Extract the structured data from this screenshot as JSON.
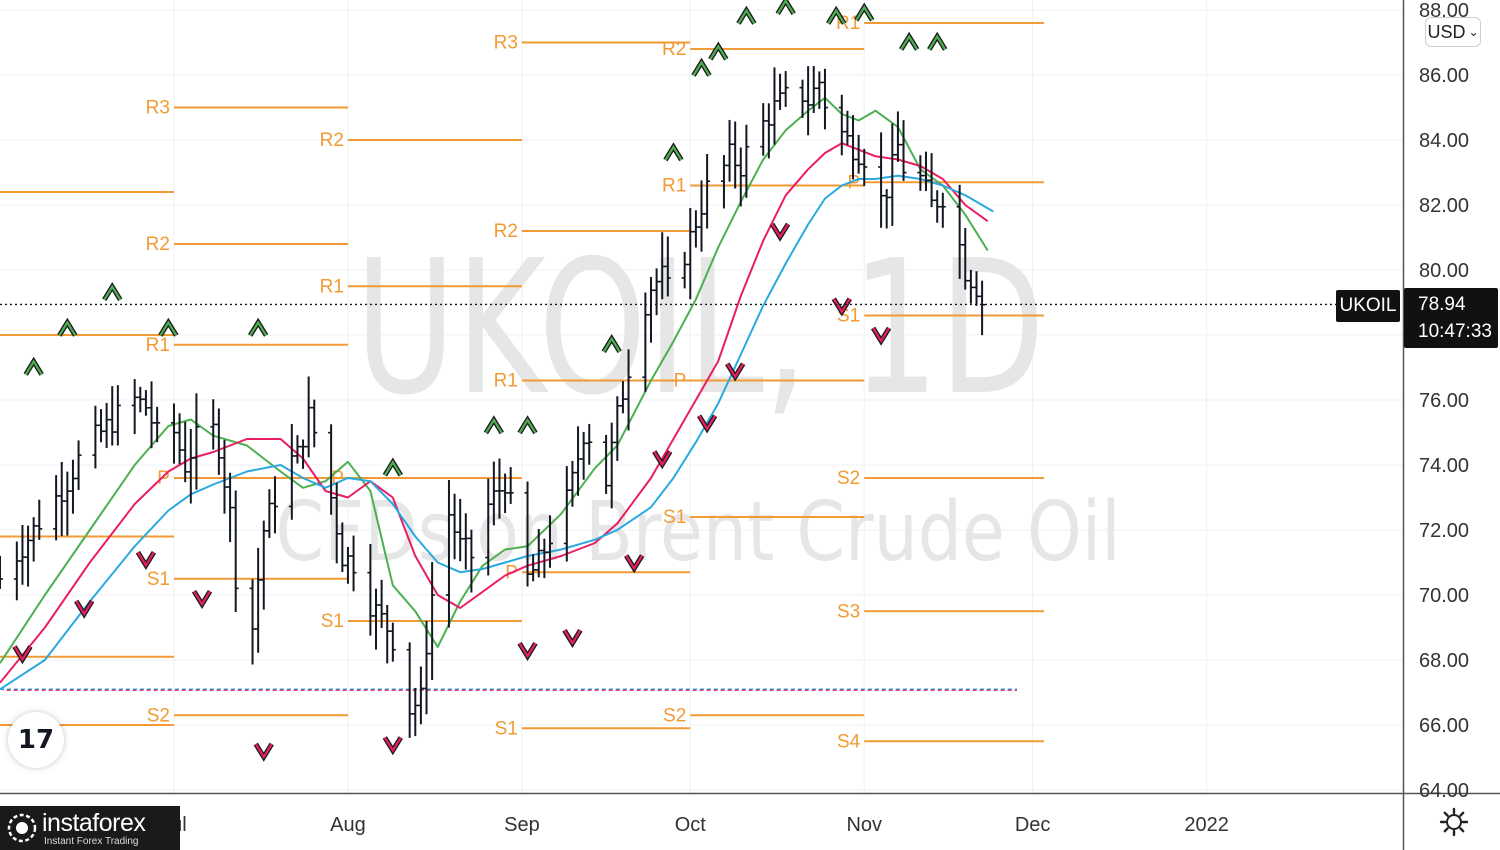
{
  "chart_data": {
    "type": "ohlc",
    "symbol": "UKOIL",
    "currency": "USD",
    "watermark_title": "UKOIL, 1D",
    "watermark_subtitle": "CFDs on Brent Crude Oil",
    "ylim": [
      64,
      88
    ],
    "y_ticks": [
      "64.00",
      "66.00",
      "68.00",
      "70.00",
      "72.00",
      "74.00",
      "76.00",
      "78.00",
      "80.00",
      "82.00",
      "84.00",
      "86.00",
      "88.00"
    ],
    "y_tick_values": [
      64,
      66,
      68,
      70,
      72,
      74,
      76,
      78,
      80,
      82,
      84,
      86,
      88
    ],
    "x_ticks": [
      {
        "label": "Jul",
        "day": 7
      },
      {
        "label": "Aug",
        "day": 38
      },
      {
        "label": "Sep",
        "day": 69
      },
      {
        "label": "Oct",
        "day": 99
      },
      {
        "label": "Nov",
        "day": 130
      },
      {
        "label": "Dec",
        "day": 160
      },
      {
        "label": "2022",
        "day": 191
      }
    ],
    "x_range_days": [
      -24,
      226
    ],
    "last_price": "78.94",
    "last_price_value": 78.94,
    "countdown": "10:47:33",
    "series_colors": {
      "ma_fast": "#4caf50",
      "ma_mid": "#e91e63",
      "ma_slow": "#2aa9e0",
      "pivots": "#f29a33",
      "bars": "#131722"
    },
    "horizontal_refs": [
      {
        "value": 67.1,
        "style": "dashed",
        "colors": [
          "#2aa9e0",
          "#e91e63"
        ]
      }
    ],
    "pivot_levels": [
      {
        "label": "",
        "value": 78.0,
        "from_day": -24,
        "to_day": 7
      },
      {
        "label": "",
        "value": 82.4,
        "from_day": -24,
        "to_day": 7
      },
      {
        "label": "",
        "value": 71.8,
        "from_day": -24,
        "to_day": 7
      },
      {
        "label": "",
        "value": 68.1,
        "from_day": -24,
        "to_day": 7
      },
      {
        "label": "",
        "value": 66.0,
        "from_day": -24,
        "to_day": 7
      },
      {
        "label": "R3",
        "value": 85.0,
        "from_day": 7,
        "to_day": 38
      },
      {
        "label": "R2",
        "value": 80.8,
        "from_day": 7,
        "to_day": 38
      },
      {
        "label": "R1",
        "value": 77.7,
        "from_day": 7,
        "to_day": 38
      },
      {
        "label": "P",
        "value": 73.6,
        "from_day": 7,
        "to_day": 38
      },
      {
        "label": "S1",
        "value": 70.5,
        "from_day": 7,
        "to_day": 38
      },
      {
        "label": "S2",
        "value": 66.3,
        "from_day": 7,
        "to_day": 38
      },
      {
        "label": "R2",
        "value": 84.0,
        "from_day": 38,
        "to_day": 69
      },
      {
        "label": "R1",
        "value": 79.5,
        "from_day": 38,
        "to_day": 69
      },
      {
        "label": "P",
        "value": 73.6,
        "from_day": 38,
        "to_day": 69
      },
      {
        "label": "S1",
        "value": 69.2,
        "from_day": 38,
        "to_day": 69
      },
      {
        "label": "R3",
        "value": 87.0,
        "from_day": 69,
        "to_day": 99
      },
      {
        "label": "R2",
        "value": 81.2,
        "from_day": 69,
        "to_day": 99
      },
      {
        "label": "R1",
        "value": 76.6,
        "from_day": 69,
        "to_day": 99
      },
      {
        "label": "P",
        "value": 70.7,
        "from_day": 69,
        "to_day": 99
      },
      {
        "label": "S1",
        "value": 65.9,
        "from_day": 69,
        "to_day": 99
      },
      {
        "label": "R2",
        "value": 86.8,
        "from_day": 99,
        "to_day": 130
      },
      {
        "label": "R1",
        "value": 82.6,
        "from_day": 99,
        "to_day": 130
      },
      {
        "label": "P",
        "value": 76.6,
        "from_day": 99,
        "to_day": 130
      },
      {
        "label": "S1",
        "value": 72.4,
        "from_day": 99,
        "to_day": 130
      },
      {
        "label": "S2",
        "value": 66.3,
        "from_day": 99,
        "to_day": 130
      },
      {
        "label": "R1",
        "value": 87.6,
        "from_day": 130,
        "to_day": 162
      },
      {
        "label": "P",
        "value": 82.7,
        "from_day": 130,
        "to_day": 162
      },
      {
        "label": "S1",
        "value": 78.6,
        "from_day": 130,
        "to_day": 162
      },
      {
        "label": "S2",
        "value": 73.6,
        "from_day": 130,
        "to_day": 162
      },
      {
        "label": "S3",
        "value": 69.5,
        "from_day": 130,
        "to_day": 162
      },
      {
        "label": "S4",
        "value": 65.5,
        "from_day": 130,
        "to_day": 162
      }
    ],
    "ohlc_anchors": [
      [
        -24,
        70.5
      ],
      [
        -20,
        71.5
      ],
      [
        -16,
        72.5
      ],
      [
        -12,
        73.5
      ],
      [
        -9,
        74.5
      ],
      [
        -6,
        75.0
      ],
      [
        -2,
        75.7
      ],
      [
        0,
        76.0
      ],
      [
        2,
        75.8
      ],
      [
        5,
        74.5
      ],
      [
        7,
        75.0
      ],
      [
        9,
        74.0
      ],
      [
        11,
        74.8
      ],
      [
        13,
        75.5
      ],
      [
        15,
        74.6
      ],
      [
        17,
        72.5
      ],
      [
        19,
        68.7
      ],
      [
        21,
        69.0
      ],
      [
        23,
        72.0
      ],
      [
        25,
        73.0
      ],
      [
        27,
        74.0
      ],
      [
        29,
        74.3
      ],
      [
        31,
        75.5
      ],
      [
        33,
        74.5
      ],
      [
        35,
        73.0
      ],
      [
        37,
        71.2
      ],
      [
        39,
        71.0
      ],
      [
        41,
        70.0
      ],
      [
        43,
        69.5
      ],
      [
        45,
        69.0
      ],
      [
        47,
        68.3
      ],
      [
        49,
        66.5
      ],
      [
        51,
        66.8
      ],
      [
        52,
        68.5
      ],
      [
        54,
        71.5
      ],
      [
        56,
        72.5
      ],
      [
        58,
        71.5
      ],
      [
        60,
        71.2
      ],
      [
        62,
        72.5
      ],
      [
        64,
        73.0
      ],
      [
        66,
        73.5
      ],
      [
        68,
        72.0
      ],
      [
        70,
        70.5
      ],
      [
        72,
        71.0
      ],
      [
        74,
        71.8
      ],
      [
        76,
        72.3
      ],
      [
        78,
        73.5
      ],
      [
        80,
        75.0
      ],
      [
        82,
        74.8
      ],
      [
        84,
        73.5
      ],
      [
        86,
        75.5
      ],
      [
        88,
        77.0
      ],
      [
        90,
        78.5
      ],
      [
        92,
        79.5
      ],
      [
        94,
        79.8
      ],
      [
        96,
        79.0
      ],
      [
        98,
        80.5
      ],
      [
        100,
        81.5
      ],
      [
        102,
        82.5
      ],
      [
        104,
        82.8
      ],
      [
        106,
        83.5
      ],
      [
        108,
        83.2
      ],
      [
        110,
        84.0
      ],
      [
        112,
        84.5
      ],
      [
        114,
        85.0
      ],
      [
        116,
        85.3
      ],
      [
        118,
        85.6
      ],
      [
        120,
        85.2
      ],
      [
        122,
        85.8
      ],
      [
        124,
        84.5
      ],
      [
        126,
        84.2
      ],
      [
        128,
        83.8
      ],
      [
        130,
        83.5
      ],
      [
        132,
        81.8
      ],
      [
        134,
        82.5
      ],
      [
        136,
        83.8
      ],
      [
        138,
        82.5
      ],
      [
        140,
        82.8
      ],
      [
        142,
        82.0
      ],
      [
        144,
        82.3
      ],
      [
        146,
        81.5
      ],
      [
        148,
        80.0
      ],
      [
        150,
        79.5
      ],
      [
        152,
        78.5
      ],
      [
        153,
        78.94
      ]
    ],
    "moving_averages": [
      {
        "key": "ma_fast",
        "points": [
          [
            -24,
            67.9
          ],
          [
            -16,
            70.0
          ],
          [
            -8,
            72.0
          ],
          [
            0,
            74.0
          ],
          [
            6,
            75.2
          ],
          [
            10,
            75.4
          ],
          [
            14,
            74.9
          ],
          [
            20,
            74.6
          ],
          [
            26,
            73.8
          ],
          [
            30,
            73.3
          ],
          [
            34,
            73.5
          ],
          [
            38,
            74.1
          ],
          [
            42,
            73.2
          ],
          [
            46,
            70.3
          ],
          [
            50,
            69.5
          ],
          [
            54,
            68.4
          ],
          [
            58,
            69.8
          ],
          [
            62,
            70.9
          ],
          [
            66,
            71.4
          ],
          [
            70,
            71.5
          ],
          [
            76,
            72.5
          ],
          [
            82,
            73.9
          ],
          [
            86,
            74.6
          ],
          [
            92,
            76.6
          ],
          [
            96,
            77.8
          ],
          [
            100,
            79.1
          ],
          [
            104,
            80.7
          ],
          [
            108,
            82.1
          ],
          [
            112,
            83.4
          ],
          [
            116,
            84.3
          ],
          [
            120,
            84.9
          ],
          [
            123,
            85.3
          ],
          [
            126,
            84.8
          ],
          [
            129,
            84.6
          ],
          [
            132,
            84.9
          ],
          [
            136,
            84.4
          ],
          [
            140,
            83.1
          ],
          [
            144,
            82.6
          ],
          [
            148,
            81.7
          ],
          [
            152,
            80.6
          ]
        ]
      },
      {
        "key": "ma_mid",
        "points": [
          [
            -24,
            67.3
          ],
          [
            -16,
            69.0
          ],
          [
            -8,
            71.0
          ],
          [
            0,
            72.8
          ],
          [
            6,
            73.8
          ],
          [
            10,
            74.2
          ],
          [
            14,
            74.4
          ],
          [
            20,
            74.8
          ],
          [
            26,
            74.8
          ],
          [
            30,
            74.2
          ],
          [
            34,
            73.2
          ],
          [
            38,
            73.0
          ],
          [
            42,
            73.5
          ],
          [
            46,
            73.0
          ],
          [
            50,
            71.2
          ],
          [
            54,
            70.0
          ],
          [
            58,
            69.6
          ],
          [
            62,
            70.1
          ],
          [
            66,
            70.6
          ],
          [
            70,
            70.9
          ],
          [
            76,
            71.2
          ],
          [
            82,
            71.6
          ],
          [
            86,
            72.2
          ],
          [
            92,
            73.6
          ],
          [
            96,
            74.8
          ],
          [
            100,
            76.0
          ],
          [
            104,
            77.2
          ],
          [
            108,
            79.2
          ],
          [
            112,
            80.9
          ],
          [
            116,
            82.3
          ],
          [
            120,
            83.1
          ],
          [
            123,
            83.6
          ],
          [
            126,
            83.9
          ],
          [
            129,
            83.7
          ],
          [
            132,
            83.5
          ],
          [
            136,
            83.4
          ],
          [
            140,
            83.2
          ],
          [
            144,
            82.8
          ],
          [
            148,
            82.0
          ],
          [
            152,
            81.5
          ]
        ]
      },
      {
        "key": "ma_slow",
        "points": [
          [
            -24,
            67.1
          ],
          [
            -16,
            68.0
          ],
          [
            -8,
            69.8
          ],
          [
            0,
            71.5
          ],
          [
            6,
            72.6
          ],
          [
            10,
            73.1
          ],
          [
            14,
            73.4
          ],
          [
            20,
            73.8
          ],
          [
            26,
            74.0
          ],
          [
            30,
            73.6
          ],
          [
            34,
            73.3
          ],
          [
            38,
            73.6
          ],
          [
            42,
            73.5
          ],
          [
            46,
            72.8
          ],
          [
            50,
            71.8
          ],
          [
            54,
            71.0
          ],
          [
            58,
            70.7
          ],
          [
            62,
            70.8
          ],
          [
            66,
            71.0
          ],
          [
            70,
            71.2
          ],
          [
            76,
            71.4
          ],
          [
            82,
            71.7
          ],
          [
            86,
            72.0
          ],
          [
            92,
            72.7
          ],
          [
            96,
            73.6
          ],
          [
            100,
            74.7
          ],
          [
            104,
            75.9
          ],
          [
            108,
            77.4
          ],
          [
            112,
            78.9
          ],
          [
            116,
            80.2
          ],
          [
            120,
            81.4
          ],
          [
            123,
            82.2
          ],
          [
            126,
            82.6
          ],
          [
            129,
            82.8
          ],
          [
            132,
            82.8
          ],
          [
            136,
            82.9
          ],
          [
            140,
            82.8
          ],
          [
            144,
            82.6
          ],
          [
            148,
            82.3
          ],
          [
            153,
            81.8
          ]
        ]
      }
    ],
    "fractal_markers": [
      {
        "dir": "up",
        "day": -18,
        "value": 77.0
      },
      {
        "dir": "up",
        "day": -12,
        "value": 78.2
      },
      {
        "dir": "up",
        "day": -4,
        "value": 79.3
      },
      {
        "dir": "up",
        "day": 6,
        "value": 78.2
      },
      {
        "dir": "up",
        "day": 22,
        "value": 78.2
      },
      {
        "dir": "up",
        "day": 46,
        "value": 73.9
      },
      {
        "dir": "up",
        "day": 64,
        "value": 75.2
      },
      {
        "dir": "up",
        "day": 70,
        "value": 75.2
      },
      {
        "dir": "up",
        "day": 85,
        "value": 77.7
      },
      {
        "dir": "up",
        "day": 96,
        "value": 83.6
      },
      {
        "dir": "up",
        "day": 101,
        "value": 86.2
      },
      {
        "dir": "up",
        "day": 104,
        "value": 86.7
      },
      {
        "dir": "up",
        "day": 109,
        "value": 87.8
      },
      {
        "dir": "up",
        "day": 116,
        "value": 88.1
      },
      {
        "dir": "up",
        "day": 125,
        "value": 87.8
      },
      {
        "dir": "up",
        "day": 130,
        "value": 87.9
      },
      {
        "dir": "up",
        "day": 138,
        "value": 87.0
      },
      {
        "dir": "up",
        "day": 143,
        "value": 87.0
      },
      {
        "dir": "down",
        "day": -20,
        "value": 68.2
      },
      {
        "dir": "down",
        "day": -9,
        "value": 69.6
      },
      {
        "dir": "down",
        "day": 2,
        "value": 71.1
      },
      {
        "dir": "down",
        "day": 12,
        "value": 69.9
      },
      {
        "dir": "down",
        "day": 23,
        "value": 65.2
      },
      {
        "dir": "down",
        "day": 46,
        "value": 65.4
      },
      {
        "dir": "down",
        "day": 70,
        "value": 68.3
      },
      {
        "dir": "down",
        "day": 78,
        "value": 68.7
      },
      {
        "dir": "down",
        "day": 89,
        "value": 71.0
      },
      {
        "dir": "down",
        "day": 94,
        "value": 74.2
      },
      {
        "dir": "down",
        "day": 102,
        "value": 75.3
      },
      {
        "dir": "down",
        "day": 107,
        "value": 76.9
      },
      {
        "dir": "down",
        "day": 115,
        "value": 81.2
      },
      {
        "dir": "down",
        "day": 126,
        "value": 78.9
      },
      {
        "dir": "down",
        "day": 133,
        "value": 78.0
      }
    ]
  },
  "ui": {
    "currency_button": "USD",
    "symbol_badge": "UKOIL",
    "price_badge_price": "78.94",
    "price_badge_countdown": "10:47:33",
    "tv_logo": "17",
    "brand_name": "instaforex",
    "brand_tagline": "Instant Forex Trading",
    "icons": {
      "settings": "gear-icon",
      "currency_chevron": "chevron-down-icon",
      "brand": "instaforex-logo-icon"
    }
  }
}
